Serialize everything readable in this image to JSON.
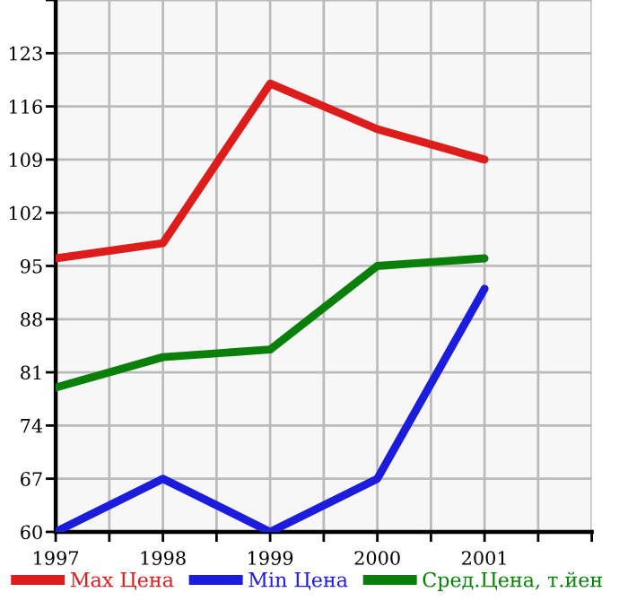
{
  "chart_data": {
    "type": "line",
    "x": [
      1997,
      1998,
      1999,
      2000,
      2001
    ],
    "series": [
      {
        "name": "Max Цена",
        "color": "#dd1c1c",
        "values": [
          96,
          98,
          119,
          113,
          109
        ]
      },
      {
        "name": "Min Цена",
        "color": "#1c1cdd",
        "values": [
          60,
          67,
          60,
          67,
          92
        ]
      },
      {
        "name": "Сред.Цена, т.йен",
        "color": "#0a800a",
        "values": [
          79,
          83,
          84,
          95,
          96
        ]
      }
    ],
    "xlim": [
      1997,
      2002
    ],
    "xticks": [
      1997,
      {
        "value": 1997.5,
        "label": null
      },
      1998,
      {
        "value": 1998.5,
        "label": null
      },
      1999,
      {
        "value": 1999.5,
        "label": null
      },
      2000,
      {
        "value": 2000.5,
        "label": null
      },
      2001,
      {
        "value": 2001.5,
        "label": null
      },
      {
        "value": 2002,
        "label": null
      }
    ],
    "ylim": [
      60,
      130
    ],
    "yticks": [
      60,
      67,
      74,
      81,
      88,
      95,
      102,
      109,
      116,
      123,
      {
        "value": 130,
        "label": null
      }
    ],
    "grid": true,
    "legend": "bottom",
    "marker": "none",
    "line_style": "solid"
  }
}
